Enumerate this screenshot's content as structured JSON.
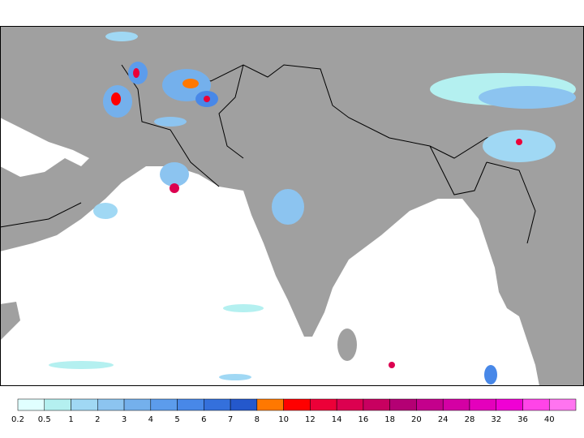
{
  "colorbar": {
    "labels": [
      "0.2",
      "0.5",
      "1",
      "2",
      "3",
      "4",
      "5",
      "6",
      "7",
      "8",
      "10",
      "12",
      "14",
      "16",
      "18",
      "20",
      "24",
      "28",
      "32",
      "36",
      "40"
    ],
    "colors": [
      "#e0ffff",
      "#b4f0f0",
      "#a0d8f4",
      "#8cc4f0",
      "#74b0ec",
      "#5c9cec",
      "#4888e8",
      "#3470dc",
      "#2458cc",
      "#ff7800",
      "#ff0000",
      "#ec0038",
      "#dc0050",
      "#c80060",
      "#b40074",
      "#c4008c",
      "#d400a4",
      "#e400bc",
      "#f000d4",
      "#ff44e8",
      "#ff74f0"
    ]
  }
}
